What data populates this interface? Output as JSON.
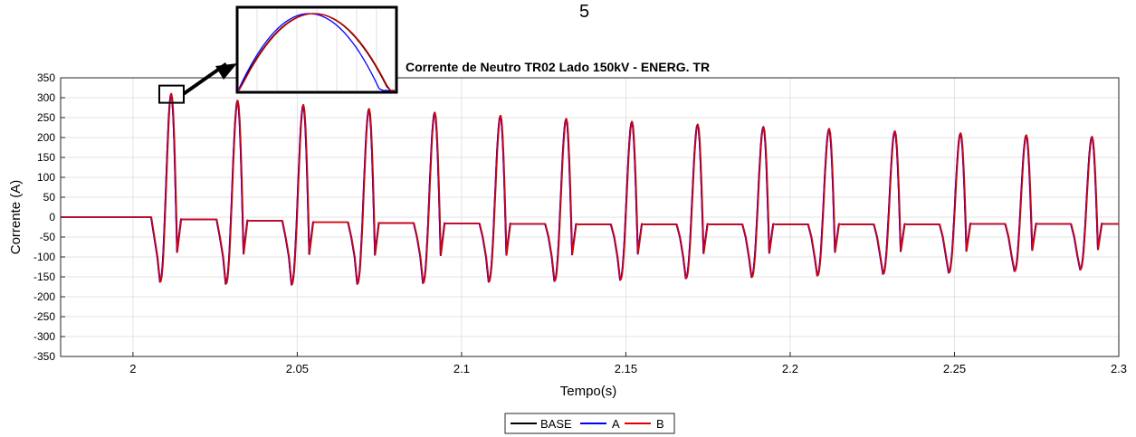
{
  "page_number": "5",
  "chart_data": {
    "type": "line",
    "title": "Corrente de Neutro TR02 Lado 150kV - ENERG. TR",
    "xlabel": "Tempo(s)",
    "ylabel": "Corrente (A)",
    "xlim": [
      1.978,
      2.3
    ],
    "ylim": [
      -350,
      350
    ],
    "grid": true,
    "x_ticks": [
      2,
      2.05,
      2.1,
      2.15,
      2.2,
      2.25,
      2.3
    ],
    "x_tick_labels": [
      "2",
      "2.05",
      "2.1",
      "2.15",
      "2.2",
      "2.25",
      "2.3"
    ],
    "y_ticks": [
      350,
      300,
      250,
      200,
      150,
      100,
      50,
      0,
      -50,
      -100,
      -150,
      -200,
      -250,
      -300,
      -350
    ],
    "y_tick_labels": [
      "350",
      "300",
      "250",
      "200",
      "150",
      "100",
      "50",
      "0",
      "-50",
      "-100",
      "-150",
      "-200",
      "-250",
      "-300",
      "-350"
    ],
    "legend_placement": "bottom-center",
    "legend": [
      "BASE",
      "A",
      "B"
    ],
    "colors": {
      "BASE": "#000000",
      "A": "#0000ff",
      "B": "#e00000"
    },
    "energization_time": 2.0055,
    "period": 0.02,
    "cycles": [
      {
        "pos_t": 2.0116,
        "pos": 310,
        "neg_t": 2.0082,
        "neg": -163,
        "plateau": -5,
        "notch": -88
      },
      {
        "pos_t": 2.0318,
        "pos": 293,
        "neg_t": 2.0282,
        "neg": -168,
        "plateau": -8,
        "notch": -92
      },
      {
        "pos_t": 2.0518,
        "pos": 282,
        "neg_t": 2.0482,
        "neg": -170,
        "plateau": -12,
        "notch": -93
      },
      {
        "pos_t": 2.0718,
        "pos": 272,
        "neg_t": 2.0682,
        "neg": -168,
        "plateau": -14,
        "notch": -95
      },
      {
        "pos_t": 2.0918,
        "pos": 263,
        "neg_t": 2.0882,
        "neg": -166,
        "plateau": -15,
        "notch": -96
      },
      {
        "pos_t": 2.1118,
        "pos": 255,
        "neg_t": 2.1082,
        "neg": -163,
        "plateau": -16,
        "notch": -95
      },
      {
        "pos_t": 2.1318,
        "pos": 247,
        "neg_t": 2.1282,
        "neg": -161,
        "plateau": -17,
        "notch": -94
      },
      {
        "pos_t": 2.1518,
        "pos": 240,
        "neg_t": 2.1482,
        "neg": -158,
        "plateau": -17,
        "notch": -92
      },
      {
        "pos_t": 2.1718,
        "pos": 233,
        "neg_t": 2.1682,
        "neg": -154,
        "plateau": -17,
        "notch": -91
      },
      {
        "pos_t": 2.1918,
        "pos": 227,
        "neg_t": 2.1882,
        "neg": -151,
        "plateau": -17,
        "notch": -90
      },
      {
        "pos_t": 2.2118,
        "pos": 222,
        "neg_t": 2.2082,
        "neg": -147,
        "plateau": -17,
        "notch": -88
      },
      {
        "pos_t": 2.2318,
        "pos": 216,
        "neg_t": 2.2282,
        "neg": -143,
        "plateau": -17,
        "notch": -86
      },
      {
        "pos_t": 2.2518,
        "pos": 211,
        "neg_t": 2.2482,
        "neg": -140,
        "plateau": -16,
        "notch": -85
      },
      {
        "pos_t": 2.2718,
        "pos": 206,
        "neg_t": 2.2682,
        "neg": -136,
        "plateau": -16,
        "notch": -83
      },
      {
        "pos_t": 2.2918,
        "pos": 202,
        "neg_t": 2.2882,
        "neg": -132,
        "plateau": -16,
        "notch": -81
      }
    ]
  }
}
